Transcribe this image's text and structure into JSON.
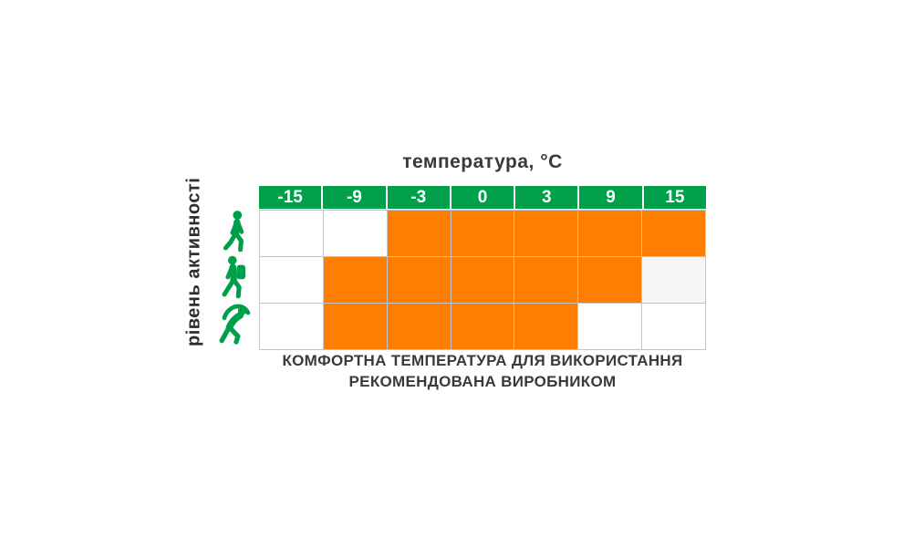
{
  "title": "температура, °С",
  "y_axis_label": "рівень активності",
  "caption": {
    "line1": "КОМФОРТНА ТЕМПЕРАТУРА ДЛЯ ВИКОРИСТАННЯ",
    "line2": "РЕКОМЕНДОВАНА ВИРОБНИКОМ"
  },
  "colors": {
    "header_bg": "#00a04b",
    "header_text": "#ffffff",
    "comfort_on": "#fd7e00",
    "comfort_off": "#ffffff",
    "comfort_muted": "#f6f6f6",
    "grid_line": "#c5c5c5",
    "label_text": "#3a3a3a",
    "icon_green": "#00a04b"
  },
  "chart_data": {
    "type": "heatmap",
    "title": "температура, °С",
    "xlabel": "температура, °С",
    "ylabel": "рівень активності",
    "x_categories": [
      "-15",
      "-9",
      "-3",
      "0",
      "3",
      "9",
      "15"
    ],
    "y_categories": [
      "walking-person",
      "hiker-with-backpack",
      "stretching-person"
    ],
    "legend_position": "none",
    "grid": true,
    "cell_states_meaning": {
      "on": "комфортна температура (orange)",
      "off": "не рекомендовано (white)",
      "muted": "light-gray cell"
    },
    "series": [
      {
        "name": "walking-person",
        "cells": [
          "off",
          "off",
          "on",
          "on",
          "on",
          "on",
          "on"
        ]
      },
      {
        "name": "hiker-with-backpack",
        "cells": [
          "off",
          "on",
          "on",
          "on",
          "on",
          "on",
          "muted"
        ]
      },
      {
        "name": "stretching-person",
        "cells": [
          "off",
          "on",
          "on",
          "on",
          "on",
          "off",
          "off"
        ]
      }
    ]
  }
}
